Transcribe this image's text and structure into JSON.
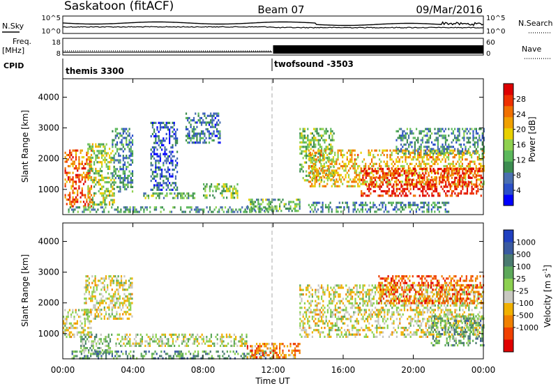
{
  "header": {
    "station": "Saskatoon (fitACF)",
    "beam": "Beam 07",
    "date": "09/Mar/2016"
  },
  "top_panels": {
    "nsky_label": "N.Sky",
    "nsky_ticks": [
      "10^5",
      "10^0"
    ],
    "nsearch_label": "N.Search",
    "freq_label": "Freq.",
    "freq_unit": "[MHz]",
    "freq_ticks": [
      "18",
      "8"
    ],
    "nave_label": "Nave",
    "nave_ticks": [
      "60",
      "0"
    ],
    "cpid_label": "CPID",
    "cpid_1": "themis 3300",
    "cpid_2": "twofsound -3503",
    "cpid_switch_hour": 12
  },
  "chart_data": [
    {
      "type": "heatmap",
      "title": "",
      "xlabel": "Time UT",
      "ylabel": "Slant Range [km]",
      "xlim": [
        0,
        24
      ],
      "ylim": [
        180,
        4600
      ],
      "x_ticks": [
        "00:00",
        "04:00",
        "08:00",
        "12:00",
        "16:00",
        "20:00",
        "00:00"
      ],
      "y_ticks": [
        1000,
        2000,
        3000,
        4000
      ],
      "colorbar": {
        "label": "Power [dB]",
        "ticks": [
          4,
          8,
          12,
          16,
          20,
          24,
          28
        ],
        "range": [
          0,
          32
        ],
        "colors": [
          "#0000ff",
          "#2b4fc8",
          "#4a6fb0",
          "#3c8c50",
          "#5cb85c",
          "#8fd14f",
          "#e8d000",
          "#f0a000",
          "#f07000",
          "#ee3000",
          "#dd0000"
        ]
      },
      "regions": [
        {
          "t0": 0.1,
          "t1": 1.6,
          "r0": 450,
          "r1": 2300,
          "level": 0.8
        },
        {
          "t0": 1.4,
          "t1": 2.9,
          "r0": 500,
          "r1": 2500,
          "level": 0.5
        },
        {
          "t0": 2.8,
          "t1": 4.0,
          "r0": 900,
          "r1": 3000,
          "level": 0.3
        },
        {
          "t0": 4.5,
          "t1": 7.5,
          "r0": 700,
          "r1": 900,
          "level": 0.4
        },
        {
          "t0": 5.0,
          "t1": 6.5,
          "r0": 1000,
          "r1": 3200,
          "level": 0.2
        },
        {
          "t0": 7.0,
          "t1": 9.0,
          "r0": 2500,
          "r1": 3500,
          "level": 0.25
        },
        {
          "t0": 8.0,
          "t1": 10.0,
          "r0": 700,
          "r1": 1200,
          "level": 0.45
        },
        {
          "t0": 0.3,
          "t1": 12.0,
          "r0": 250,
          "r1": 450,
          "level": 0.35
        },
        {
          "t0": 10.5,
          "t1": 13.5,
          "r0": 300,
          "r1": 700,
          "level": 0.4
        },
        {
          "t0": 13.5,
          "t1": 15.5,
          "r0": 1300,
          "r1": 3000,
          "level": 0.45
        },
        {
          "t0": 14.0,
          "t1": 24.0,
          "r0": 1100,
          "r1": 2300,
          "level": 0.65
        },
        {
          "t0": 17.0,
          "t1": 24.0,
          "r0": 800,
          "r1": 1700,
          "level": 0.9
        },
        {
          "t0": 19.0,
          "t1": 24.0,
          "r0": 2200,
          "r1": 3000,
          "level": 0.3
        },
        {
          "t0": 14.0,
          "t1": 22.0,
          "r0": 250,
          "r1": 600,
          "level": 0.3
        }
      ]
    },
    {
      "type": "heatmap",
      "title": "",
      "xlabel": "Time UT",
      "ylabel": "Slant Range [km]",
      "xlim": [
        0,
        24
      ],
      "ylim": [
        180,
        4600
      ],
      "x_ticks": [
        "00:00",
        "04:00",
        "08:00",
        "12:00",
        "16:00",
        "20:00",
        "00:00"
      ],
      "y_ticks": [
        1000,
        2000,
        3000,
        4000
      ],
      "colorbar": {
        "label": "Velocity [m s^-1]",
        "ticks": [
          "1000",
          "500",
          "100",
          "25",
          "-25",
          "-100",
          "-500",
          "-1000"
        ],
        "colors": [
          "#2040c0",
          "#3a5aa0",
          "#4a7a70",
          "#5da85a",
          "#8cd050",
          "#c8c8c0",
          "#f0b000",
          "#f08000",
          "#f04000",
          "#e00000"
        ]
      },
      "regions": [
        {
          "t0": 0.0,
          "t1": 1.6,
          "r0": 900,
          "r1": 1800,
          "level": 0.55
        },
        {
          "t0": 1.2,
          "t1": 4.0,
          "r0": 1500,
          "r1": 2900,
          "level": 0.55
        },
        {
          "t0": 1.0,
          "t1": 2.8,
          "r0": 350,
          "r1": 1000,
          "level": 0.4
        },
        {
          "t0": 3.0,
          "t1": 10.5,
          "r0": 600,
          "r1": 1000,
          "level": 0.5
        },
        {
          "t0": 0.5,
          "t1": 12.0,
          "r0": 200,
          "r1": 450,
          "level": 0.3
        },
        {
          "t0": 10.5,
          "t1": 13.5,
          "r0": 250,
          "r1": 700,
          "level": 0.75
        },
        {
          "t0": 13.5,
          "t1": 24.0,
          "r0": 900,
          "r1": 2600,
          "level": 0.55
        },
        {
          "t0": 18.0,
          "t1": 24.0,
          "r0": 2000,
          "r1": 2900,
          "level": 0.8
        },
        {
          "t0": 21.0,
          "t1": 24.0,
          "r0": 600,
          "r1": 1600,
          "level": 0.35
        }
      ]
    }
  ]
}
